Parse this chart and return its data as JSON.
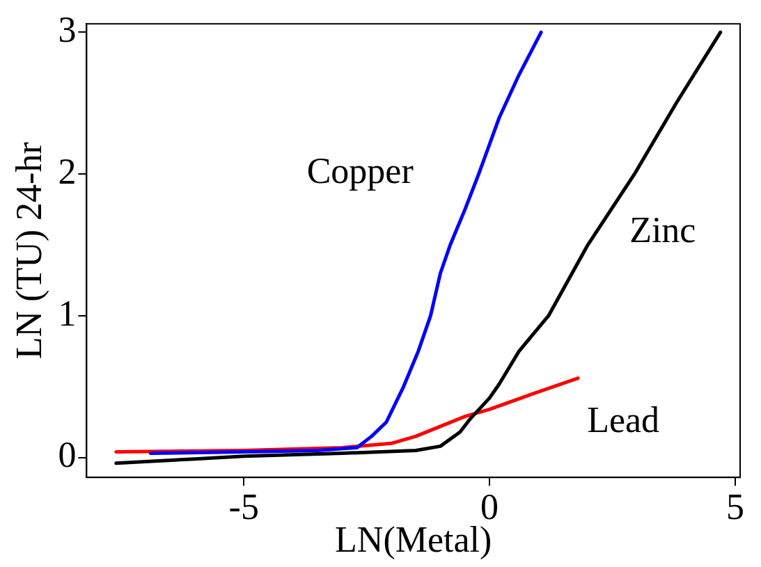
{
  "chart_data": {
    "type": "line",
    "xlabel": "LN(Metal)",
    "ylabel": "LN (TU) 24-hr",
    "xlim": [
      -8.2,
      5.1
    ],
    "ylim": [
      -0.14,
      3.06
    ],
    "xticks": [
      -5,
      0,
      5
    ],
    "yticks": [
      0,
      1,
      2,
      3
    ],
    "grid": false,
    "legend": false,
    "marker": "none",
    "line_style": "solid",
    "series": [
      {
        "name": "Copper",
        "color": "#0000ff",
        "x": [
          -6.9,
          -5,
          -3.5,
          -2.7,
          -2.4,
          -2.1,
          -1.75,
          -1.45,
          -1.2,
          -1.0,
          -0.8,
          -0.5,
          -0.22,
          0.2,
          0.6,
          1.05
        ],
        "values": [
          0.03,
          0.04,
          0.05,
          0.07,
          0.15,
          0.25,
          0.5,
          0.75,
          1.0,
          1.3,
          1.5,
          1.75,
          2.0,
          2.4,
          2.7,
          3.0
        ]
      },
      {
        "name": "Zinc",
        "color": "#000000",
        "x": [
          -7.6,
          -6,
          -5,
          -3,
          -1.5,
          -1,
          -0.6,
          -0.4,
          0,
          0.2,
          0.6,
          1.2,
          2.0,
          2.95,
          3.8,
          4.7
        ],
        "values": [
          -0.04,
          -0.01,
          0.01,
          0.03,
          0.05,
          0.08,
          0.18,
          0.27,
          0.42,
          0.52,
          0.75,
          1.0,
          1.5,
          2.0,
          2.5,
          3.0
        ]
      },
      {
        "name": "Lead",
        "color": "#ff0000",
        "x": [
          -7.6,
          -5,
          -3,
          -2,
          -1.5,
          -1,
          -0.5,
          0,
          0.8,
          1.8
        ],
        "values": [
          0.04,
          0.05,
          0.07,
          0.1,
          0.15,
          0.22,
          0.29,
          0.34,
          0.44,
          0.56
        ]
      }
    ]
  }
}
